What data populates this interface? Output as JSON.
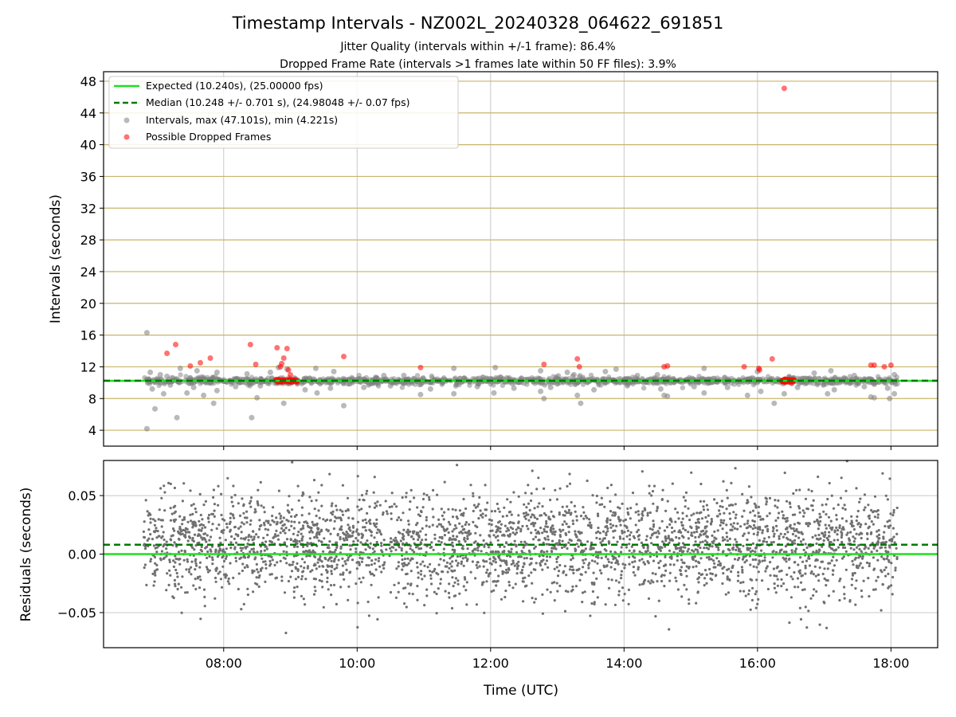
{
  "title": "Timestamp Intervals - NZ002L_20240328_064622_691851",
  "subtitle_1": "Jitter Quality (intervals within +/-1 frame): 86.4%",
  "subtitle_2": "Dropped Frame Rate (intervals >1 frames late within 50 FF files): 3.9%",
  "colors": {
    "expected": "#1fe01f",
    "median": "#007a00",
    "intervals": "#808080",
    "dropped": "#ff0000",
    "grid_upper": "#c8b46a",
    "grid": "#c8c8c8"
  },
  "chart_data": [
    {
      "type": "scatter",
      "ylabel": "Intervals (seconds)",
      "xlim_hours": [
        6.2,
        18.7
      ],
      "ylim": [
        2.0,
        49.2
      ],
      "yticks": [
        4,
        8,
        12,
        16,
        20,
        24,
        28,
        32,
        36,
        40,
        44,
        48
      ],
      "ytick_labels": [
        "4",
        "8",
        "12",
        "16",
        "20",
        "24",
        "28",
        "32",
        "36",
        "40",
        "44",
        "48"
      ],
      "xgrid_hours": [
        8,
        10,
        12,
        14,
        16,
        18
      ],
      "expected_value": 10.24,
      "median_value": 10.248,
      "x_range_hours": [
        6.8,
        18.1
      ],
      "legend": {
        "placement": "top-left",
        "expected": "Expected (10.240s), (25.00000 fps)",
        "median": "Median (10.248 +/- 0.701 s), (24.98048 +/- 0.07 fps)",
        "intervals": "Intervals, max (47.101s), min (4.221s)",
        "dropped": "Possible Dropped Frames"
      },
      "outliers_gray": [
        [
          6.85,
          16.3
        ],
        [
          6.85,
          4.2
        ],
        [
          6.97,
          6.7
        ],
        [
          7.3,
          5.6
        ],
        [
          8.42,
          5.6
        ],
        [
          8.9,
          7.4
        ],
        [
          9.8,
          7.1
        ],
        [
          13.35,
          7.4
        ],
        [
          16.25,
          7.4
        ],
        [
          7.1,
          8.6
        ],
        [
          7.45,
          8.7
        ],
        [
          7.7,
          8.4
        ],
        [
          7.85,
          7.4
        ],
        [
          8.5,
          8.1
        ],
        [
          9.4,
          8.7
        ],
        [
          10.95,
          8.5
        ],
        [
          11.45,
          8.6
        ],
        [
          12.05,
          8.7
        ],
        [
          12.75,
          8.9
        ],
        [
          12.8,
          8.0
        ],
        [
          13.3,
          8.4
        ],
        [
          14.6,
          8.4
        ],
        [
          14.65,
          8.3
        ],
        [
          15.2,
          8.7
        ],
        [
          15.85,
          8.4
        ],
        [
          16.4,
          8.6
        ],
        [
          17.05,
          8.6
        ],
        [
          17.7,
          8.2
        ],
        [
          17.75,
          8.1
        ],
        [
          17.98,
          8.0
        ],
        [
          18.05,
          8.6
        ],
        [
          6.9,
          11.3
        ],
        [
          7.05,
          11.0
        ],
        [
          7.15,
          10.8
        ],
        [
          7.35,
          11.8
        ],
        [
          7.6,
          11.5
        ],
        [
          7.9,
          11.3
        ],
        [
          8.35,
          11.1
        ],
        [
          8.7,
          11.3
        ],
        [
          8.82,
          11.9
        ],
        [
          8.95,
          11.7
        ],
        [
          9.38,
          11.8
        ],
        [
          9.65,
          11.4
        ],
        [
          10.4,
          10.9
        ],
        [
          10.7,
          10.9
        ],
        [
          11.45,
          11.8
        ],
        [
          12.07,
          11.9
        ],
        [
          12.75,
          11.5
        ],
        [
          13.15,
          11.3
        ],
        [
          13.25,
          11.0
        ],
        [
          13.72,
          11.4
        ],
        [
          13.88,
          11.7
        ],
        [
          14.2,
          10.9
        ],
        [
          14.5,
          11.0
        ],
        [
          15.2,
          11.8
        ],
        [
          16.0,
          11.4
        ],
        [
          16.85,
          11.2
        ],
        [
          17.1,
          11.5
        ],
        [
          17.45,
          10.9
        ],
        [
          18.05,
          11.0
        ],
        [
          6.93,
          9.2
        ],
        [
          7.2,
          9.7
        ],
        [
          7.55,
          9.4
        ],
        [
          7.9,
          9.0
        ],
        [
          8.18,
          9.5
        ],
        [
          8.55,
          9.6
        ],
        [
          9.22,
          9.1
        ],
        [
          9.6,
          9.3
        ],
        [
          10.1,
          9.4
        ],
        [
          10.5,
          9.6
        ],
        [
          11.1,
          9.2
        ],
        [
          11.8,
          9.5
        ],
        [
          12.35,
          9.3
        ],
        [
          12.9,
          9.4
        ],
        [
          13.55,
          9.1
        ],
        [
          14.05,
          9.6
        ],
        [
          14.55,
          9.2
        ],
        [
          15.05,
          9.5
        ],
        [
          15.55,
          9.4
        ],
        [
          16.05,
          8.9
        ],
        [
          16.6,
          9.4
        ],
        [
          17.15,
          9.1
        ],
        [
          17.6,
          9.5
        ],
        [
          17.95,
          9.3
        ]
      ],
      "dropped_frames": [
        [
          7.15,
          13.7
        ],
        [
          7.28,
          14.8
        ],
        [
          7.5,
          12.1
        ],
        [
          7.65,
          12.5
        ],
        [
          7.8,
          13.1
        ],
        [
          8.4,
          14.8
        ],
        [
          8.48,
          12.3
        ],
        [
          8.8,
          14.4
        ],
        [
          8.85,
          12.0
        ],
        [
          8.87,
          12.4
        ],
        [
          8.9,
          13.1
        ],
        [
          8.95,
          14.3
        ],
        [
          8.97,
          11.6
        ],
        [
          9.0,
          11.0
        ],
        [
          9.8,
          13.3
        ],
        [
          10.95,
          11.9
        ],
        [
          12.8,
          12.3
        ],
        [
          13.3,
          13.0
        ],
        [
          13.33,
          12.0
        ],
        [
          14.6,
          12.0
        ],
        [
          14.65,
          12.1
        ],
        [
          15.8,
          12.0
        ],
        [
          16.02,
          11.8
        ],
        [
          16.03,
          11.6
        ],
        [
          16.22,
          13.0
        ],
        [
          16.4,
          47.1
        ],
        [
          17.7,
          12.2
        ],
        [
          17.75,
          12.2
        ],
        [
          17.9,
          12.0
        ],
        [
          18.0,
          12.2
        ]
      ],
      "dropped_cluster_ranges": [
        [
          8.78,
          9.1
        ],
        [
          16.35,
          16.55
        ]
      ]
    },
    {
      "type": "scatter",
      "xlabel": "Time (UTC)",
      "ylabel": "Residuals (seconds)",
      "xlim_hours": [
        6.2,
        18.7
      ],
      "ylim": [
        -0.08,
        0.08
      ],
      "yticks": [
        -0.05,
        0.0,
        0.05
      ],
      "ytick_labels": [
        "−0.05",
        "0.00",
        "0.05"
      ],
      "xticks_hours": [
        8,
        10,
        12,
        14,
        16,
        18
      ],
      "xtick_labels": [
        "08:00",
        "10:00",
        "12:00",
        "14:00",
        "16:00",
        "18:00"
      ],
      "expected_value": 0.0,
      "median_value": 0.008,
      "x_range_hours": [
        6.8,
        18.1
      ],
      "residual_spread_sd": 0.022,
      "point_count": 3300
    }
  ]
}
